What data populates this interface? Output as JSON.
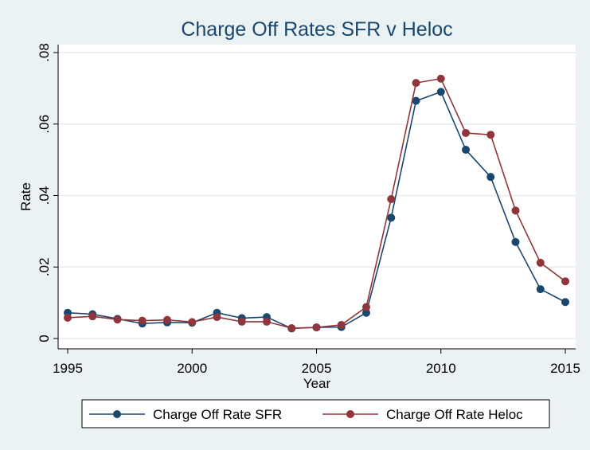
{
  "chart_data": {
    "type": "line",
    "title": "Charge Off Rates SFR v Heloc",
    "xlabel": "Year",
    "ylabel": "Rate",
    "xlim": [
      1995,
      2015
    ],
    "ylim": [
      0,
      0.08
    ],
    "x_ticks": [
      {
        "value": 1995,
        "label": "1995"
      },
      {
        "value": 2000,
        "label": "2000"
      },
      {
        "value": 2005,
        "label": "2005"
      },
      {
        "value": 2010,
        "label": "2010"
      },
      {
        "value": 2015,
        "label": "2015"
      }
    ],
    "y_ticks": [
      {
        "value": 0,
        "label": "0"
      },
      {
        "value": 0.02,
        "label": ".02"
      },
      {
        "value": 0.04,
        "label": ".04"
      },
      {
        "value": 0.06,
        "label": ".06"
      },
      {
        "value": 0.08,
        "label": ".08"
      }
    ],
    "grid": true,
    "legend_position": "bottom",
    "x": [
      1995,
      1996,
      1997,
      1998,
      1999,
      2000,
      2001,
      2002,
      2003,
      2004,
      2005,
      2006,
      2007,
      2008,
      2009,
      2010,
      2011,
      2012,
      2013,
      2014,
      2015
    ],
    "series": [
      {
        "name": "Charge Off Rate SFR",
        "color": "#1a476f",
        "values": [
          0.0072,
          0.0068,
          0.0055,
          0.0042,
          0.0045,
          0.0044,
          0.0072,
          0.0057,
          0.006,
          0.0028,
          0.0031,
          0.0032,
          0.0072,
          0.0338,
          0.0665,
          0.069,
          0.0528,
          0.0452,
          0.027,
          0.0138,
          0.0102
        ]
      },
      {
        "name": "Charge Off Rate Heloc",
        "color": "#90353b",
        "values": [
          0.0058,
          0.0062,
          0.0053,
          0.005,
          0.0052,
          0.0046,
          0.006,
          0.0047,
          0.0047,
          0.0029,
          0.0031,
          0.0038,
          0.0088,
          0.039,
          0.0715,
          0.0727,
          0.0575,
          0.057,
          0.0358,
          0.0212,
          0.016
        ]
      }
    ]
  }
}
